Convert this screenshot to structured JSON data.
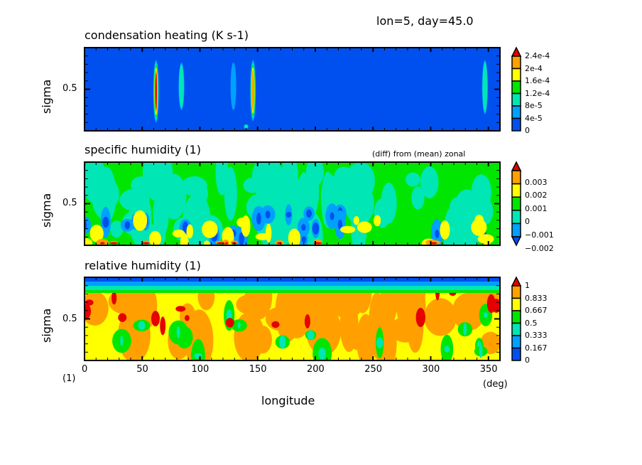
{
  "header": {
    "info": "lon=5, day=45.0"
  },
  "xaxis": {
    "label": "longitude",
    "unit": "(deg)",
    "left_unit": "(1)",
    "ticks": [
      "0",
      "50",
      "100",
      "150",
      "200",
      "250",
      "300",
      "350"
    ]
  },
  "chart_data": [
    {
      "type": "heatmap",
      "title": "condensation heating (K s-1)",
      "subtitle": "",
      "xlabel": "longitude",
      "ylabel": "sigma",
      "xlim": [
        0,
        360
      ],
      "ylim": [
        1,
        0
      ],
      "ytick_labels": [
        "0.5"
      ],
      "colorbar": {
        "labels": [
          "2.4e-4",
          "2e-4",
          "1.6e-4",
          "1.2e-4",
          "8e-5",
          "4e-5",
          "0"
        ],
        "colors": [
          "#0050f0",
          "#00a0ff",
          "#00e6b4",
          "#00e600",
          "#ffff00",
          "#ffa000",
          "#e60000"
        ],
        "extend": "max"
      },
      "features": [
        {
          "lon": 62,
          "sigma_top": 0.15,
          "sigma_bottom": 0.9,
          "max": 0.00026
        },
        {
          "lon": 84,
          "sigma_top": 0.18,
          "sigma_bottom": 0.75,
          "max": 0.0001
        },
        {
          "lon": 129,
          "sigma_top": 0.18,
          "sigma_bottom": 0.75,
          "max": 6e-05
        },
        {
          "lon": 146,
          "sigma_top": 0.15,
          "sigma_bottom": 0.88,
          "max": 0.0002
        },
        {
          "lon": 347,
          "sigma_top": 0.15,
          "sigma_bottom": 0.8,
          "max": 9e-05
        }
      ]
    },
    {
      "type": "heatmap",
      "title": "specific humidity (1)",
      "subtitle": "(diff) from (mean) zonal",
      "xlabel": "longitude",
      "ylabel": "sigma",
      "xlim": [
        0,
        360
      ],
      "ylim": [
        1,
        0
      ],
      "ytick_labels": [
        "0.5"
      ],
      "colorbar": {
        "labels": [
          "0.003",
          "0.002",
          "0.001",
          "0",
          "−0.001",
          "−0.002"
        ],
        "colors": [
          "#0050f0",
          "#00a0ff",
          "#00e6b4",
          "#00e600",
          "#ffff00",
          "#ffa000",
          "#e60000"
        ],
        "extend": "both"
      }
    },
    {
      "type": "heatmap",
      "title": "relative humidity (1)",
      "subtitle": "",
      "xlabel": "longitude",
      "ylabel": "sigma",
      "xlim": [
        0,
        360
      ],
      "ylim": [
        1,
        0
      ],
      "ytick_labels": [
        "0.5"
      ],
      "colorbar": {
        "labels": [
          "1",
          "0.833",
          "0.667",
          "0.5",
          "0.333",
          "0.167",
          "0"
        ],
        "colors": [
          "#0050f0",
          "#00a0ff",
          "#00e6b4",
          "#00e600",
          "#ffff00",
          "#ffa000",
          "#e60000"
        ],
        "extend": "max"
      }
    }
  ]
}
